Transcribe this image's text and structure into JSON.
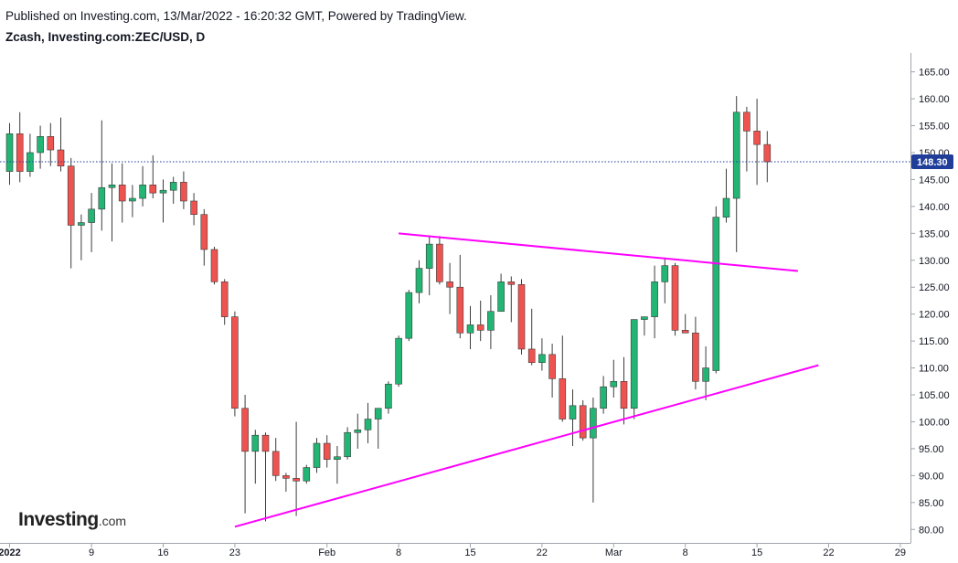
{
  "header": {
    "published": "Published on Investing.com, 13/Mar/2022 - 16:20:32 GMT, Powered by TradingView.",
    "symbol": "Zcash, Investing.com:ZEC/USD, D"
  },
  "logo": {
    "name": "Investing",
    "suffix": ".com"
  },
  "colors": {
    "up": "#22b573",
    "down": "#ef5350",
    "trendline": "#ff00ff",
    "last_price_line": "#1f3d99",
    "axis": "#a0a4ab"
  },
  "chart_data": {
    "type": "candlestick",
    "title": "Zcash, Investing.com:ZEC/USD, D",
    "ylim": [
      77.5,
      168.5
    ],
    "y_ticks": [
      80,
      85,
      90,
      95,
      100,
      105,
      110,
      115,
      120,
      125,
      130,
      135,
      140,
      145,
      150,
      155,
      160,
      165
    ],
    "y_tick_labels": [
      "80.00",
      "85.00",
      "90.00",
      "95.00",
      "100.00",
      "105.00",
      "110.00",
      "115.00",
      "120.00",
      "125.00",
      "130.00",
      "135.00",
      "140.00",
      "145.00",
      "150.00",
      "155.00",
      "160.00",
      "165.00"
    ],
    "last_price": 148.3,
    "last_price_label": "148.30",
    "x_ticks": [
      {
        "day": 0,
        "label": "2022"
      },
      {
        "day": 8,
        "label": "9"
      },
      {
        "day": 15,
        "label": "16"
      },
      {
        "day": 22,
        "label": "23"
      },
      {
        "day": 31,
        "label": "Feb"
      },
      {
        "day": 38,
        "label": "8"
      },
      {
        "day": 45,
        "label": "15"
      },
      {
        "day": 52,
        "label": "22"
      },
      {
        "day": 59,
        "label": "Mar"
      },
      {
        "day": 66,
        "label": "8"
      },
      {
        "day": 73,
        "label": "15"
      },
      {
        "day": 80,
        "label": "22"
      },
      {
        "day": 87,
        "label": "29"
      }
    ],
    "candles": [
      {
        "date": "Dec 31",
        "o": 146.5,
        "h": 155.5,
        "l": 144.0,
        "c": 153.5
      },
      {
        "date": "Jan 1",
        "o": 153.5,
        "h": 157.5,
        "l": 144.5,
        "c": 146.5
      },
      {
        "date": "Jan 2",
        "o": 146.5,
        "h": 153.5,
        "l": 145.5,
        "c": 150.0
      },
      {
        "date": "Jan 3",
        "o": 150.0,
        "h": 155.0,
        "l": 147.0,
        "c": 153.0
      },
      {
        "date": "Jan 4",
        "o": 153.0,
        "h": 155.5,
        "l": 147.5,
        "c": 150.5
      },
      {
        "date": "Jan 5",
        "o": 150.5,
        "h": 156.5,
        "l": 146.5,
        "c": 147.5
      },
      {
        "date": "Jan 6",
        "o": 147.5,
        "h": 149.0,
        "l": 128.5,
        "c": 136.5
      },
      {
        "date": "Jan 7",
        "o": 136.5,
        "h": 138.5,
        "l": 130.0,
        "c": 137.0
      },
      {
        "date": "Jan 8",
        "o": 137.0,
        "h": 142.5,
        "l": 131.5,
        "c": 139.5
      },
      {
        "date": "Jan 9",
        "o": 139.5,
        "h": 156.0,
        "l": 135.5,
        "c": 143.5
      },
      {
        "date": "Jan 10",
        "o": 143.5,
        "h": 148.0,
        "l": 133.5,
        "c": 144.0
      },
      {
        "date": "Jan 11",
        "o": 144.0,
        "h": 148.0,
        "l": 137.0,
        "c": 141.0
      },
      {
        "date": "Jan 12",
        "o": 141.0,
        "h": 144.0,
        "l": 138.0,
        "c": 141.5
      },
      {
        "date": "Jan 13",
        "o": 141.5,
        "h": 147.5,
        "l": 140.0,
        "c": 144.0
      },
      {
        "date": "Jan 14",
        "o": 144.0,
        "h": 149.5,
        "l": 141.5,
        "c": 142.5
      },
      {
        "date": "Jan 15",
        "o": 142.5,
        "h": 145.0,
        "l": 137.0,
        "c": 143.0
      },
      {
        "date": "Jan 16",
        "o": 143.0,
        "h": 145.5,
        "l": 140.5,
        "c": 144.5
      },
      {
        "date": "Jan 17",
        "o": 144.5,
        "h": 146.5,
        "l": 139.5,
        "c": 141.0
      },
      {
        "date": "Jan 18",
        "o": 141.0,
        "h": 142.5,
        "l": 136.5,
        "c": 138.5
      },
      {
        "date": "Jan 19",
        "o": 138.5,
        "h": 139.5,
        "l": 129.0,
        "c": 132.0
      },
      {
        "date": "Jan 20",
        "o": 132.0,
        "h": 132.5,
        "l": 125.5,
        "c": 126.0
      },
      {
        "date": "Jan 21",
        "o": 126.0,
        "h": 126.5,
        "l": 118.0,
        "c": 119.5
      },
      {
        "date": "Jan 22",
        "o": 119.5,
        "h": 120.5,
        "l": 101.0,
        "c": 102.5
      },
      {
        "date": "Jan 23",
        "o": 102.5,
        "h": 105.0,
        "l": 83.0,
        "c": 94.5
      },
      {
        "date": "Jan 24",
        "o": 94.5,
        "h": 98.5,
        "l": 88.5,
        "c": 97.5
      },
      {
        "date": "Jan 25",
        "o": 97.5,
        "h": 98.0,
        "l": 81.5,
        "c": 94.5
      },
      {
        "date": "Jan 26",
        "o": 94.5,
        "h": 97.0,
        "l": 89.0,
        "c": 90.0
      },
      {
        "date": "Jan 27",
        "o": 90.0,
        "h": 90.5,
        "l": 87.0,
        "c": 89.5
      },
      {
        "date": "Jan 28",
        "o": 89.5,
        "h": 100.0,
        "l": 82.5,
        "c": 89.0
      },
      {
        "date": "Jan 29",
        "o": 89.0,
        "h": 92.0,
        "l": 88.5,
        "c": 91.5
      },
      {
        "date": "Jan 30",
        "o": 91.5,
        "h": 97.0,
        "l": 90.5,
        "c": 96.0
      },
      {
        "date": "Jan 31",
        "o": 96.0,
        "h": 97.5,
        "l": 91.5,
        "c": 93.0
      },
      {
        "date": "Feb 1",
        "o": 93.0,
        "h": 95.5,
        "l": 88.5,
        "c": 93.5
      },
      {
        "date": "Feb 2",
        "o": 93.5,
        "h": 99.0,
        "l": 93.0,
        "c": 98.0
      },
      {
        "date": "Feb 3",
        "o": 98.0,
        "h": 101.5,
        "l": 95.0,
        "c": 98.5
      },
      {
        "date": "Feb 4",
        "o": 98.5,
        "h": 103.5,
        "l": 96.0,
        "c": 100.5
      },
      {
        "date": "Feb 5",
        "o": 100.5,
        "h": 102.5,
        "l": 95.0,
        "c": 102.5
      },
      {
        "date": "Feb 6",
        "o": 102.5,
        "h": 107.5,
        "l": 101.5,
        "c": 107.0
      },
      {
        "date": "Feb 7",
        "o": 107.0,
        "h": 116.0,
        "l": 106.5,
        "c": 115.5
      },
      {
        "date": "Feb 8",
        "o": 115.5,
        "h": 124.5,
        "l": 115.0,
        "c": 124.0
      },
      {
        "date": "Feb 9",
        "o": 124.0,
        "h": 130.0,
        "l": 122.0,
        "c": 128.5
      },
      {
        "date": "Feb 10",
        "o": 128.5,
        "h": 134.5,
        "l": 123.5,
        "c": 133.0
      },
      {
        "date": "Feb 11",
        "o": 133.0,
        "h": 134.5,
        "l": 125.5,
        "c": 126.0
      },
      {
        "date": "Feb 12",
        "o": 126.0,
        "h": 129.5,
        "l": 120.0,
        "c": 125.0
      },
      {
        "date": "Feb 13",
        "o": 125.0,
        "h": 131.0,
        "l": 115.5,
        "c": 116.5
      },
      {
        "date": "Feb 14",
        "o": 116.5,
        "h": 121.5,
        "l": 113.5,
        "c": 118.0
      },
      {
        "date": "Feb 15",
        "o": 118.0,
        "h": 122.5,
        "l": 115.0,
        "c": 117.0
      },
      {
        "date": "Feb 16",
        "o": 117.0,
        "h": 123.5,
        "l": 113.5,
        "c": 120.5
      },
      {
        "date": "Feb 17",
        "o": 120.5,
        "h": 127.5,
        "l": 120.5,
        "c": 126.0
      },
      {
        "date": "Feb 18",
        "o": 126.0,
        "h": 127.0,
        "l": 118.5,
        "c": 125.5
      },
      {
        "date": "Feb 19",
        "o": 125.5,
        "h": 126.5,
        "l": 112.5,
        "c": 113.5
      },
      {
        "date": "Feb 20",
        "o": 113.5,
        "h": 121.0,
        "l": 110.5,
        "c": 111.0
      },
      {
        "date": "Feb 21",
        "o": 111.0,
        "h": 115.5,
        "l": 109.5,
        "c": 112.5
      },
      {
        "date": "Feb 22",
        "o": 112.5,
        "h": 114.5,
        "l": 104.5,
        "c": 108.0
      },
      {
        "date": "Feb 23",
        "o": 108.0,
        "h": 116.0,
        "l": 100.0,
        "c": 100.5
      },
      {
        "date": "Feb 24",
        "o": 100.5,
        "h": 106.0,
        "l": 95.5,
        "c": 103.0
      },
      {
        "date": "Feb 25",
        "o": 103.0,
        "h": 104.0,
        "l": 96.5,
        "c": 97.0
      },
      {
        "date": "Feb 26",
        "o": 97.0,
        "h": 104.5,
        "l": 85.0,
        "c": 102.5
      },
      {
        "date": "Feb 27",
        "o": 102.5,
        "h": 108.5,
        "l": 101.5,
        "c": 106.5
      },
      {
        "date": "Feb 28",
        "o": 106.5,
        "h": 111.5,
        "l": 104.5,
        "c": 107.5
      },
      {
        "date": "Mar 1",
        "o": 107.5,
        "h": 112.0,
        "l": 99.5,
        "c": 102.5
      },
      {
        "date": "Mar 2",
        "o": 102.5,
        "h": 119.0,
        "l": 100.5,
        "c": 119.0
      },
      {
        "date": "Mar 3",
        "o": 119.0,
        "h": 119.5,
        "l": 116.0,
        "c": 119.5
      },
      {
        "date": "Mar 4",
        "o": 119.5,
        "h": 129.0,
        "l": 115.5,
        "c": 126.0
      },
      {
        "date": "Mar 5",
        "o": 126.0,
        "h": 130.5,
        "l": 122.0,
        "c": 129.0
      },
      {
        "date": "Mar 6",
        "o": 129.0,
        "h": 129.5,
        "l": 116.0,
        "c": 117.0
      },
      {
        "date": "Mar 7",
        "o": 117.0,
        "h": 120.0,
        "l": 116.5,
        "c": 116.5
      },
      {
        "date": "Mar 8",
        "o": 116.5,
        "h": 119.5,
        "l": 106.0,
        "c": 107.5
      },
      {
        "date": "Mar 9",
        "o": 107.5,
        "h": 114.0,
        "l": 104.0,
        "c": 110.0
      },
      {
        "date": "Mar 10",
        "o": 109.5,
        "h": 140.0,
        "l": 109.0,
        "c": 138.0
      },
      {
        "date": "Mar 11",
        "o": 138.0,
        "h": 147.0,
        "l": 137.0,
        "c": 141.5
      },
      {
        "date": "Mar 12",
        "o": 141.5,
        "h": 160.5,
        "l": 131.5,
        "c": 157.5
      },
      {
        "date": "Mar 13",
        "o": 157.5,
        "h": 158.5,
        "l": 146.5,
        "c": 154.0
      },
      {
        "date": "Mar 14",
        "o": 154.0,
        "h": 160.0,
        "l": 144.0,
        "c": 151.5
      },
      {
        "date": "Mar 15",
        "o": 151.5,
        "h": 154.0,
        "l": 144.5,
        "c": 148.3
      }
    ],
    "trendlines": [
      {
        "name": "upper",
        "from": {
          "day": 38,
          "price": 135.0
        },
        "to": {
          "day": 77,
          "price": 128.0
        }
      },
      {
        "name": "lower",
        "from": {
          "day": 22,
          "price": 80.5
        },
        "to": {
          "day": 79,
          "price": 110.5
        }
      }
    ]
  }
}
